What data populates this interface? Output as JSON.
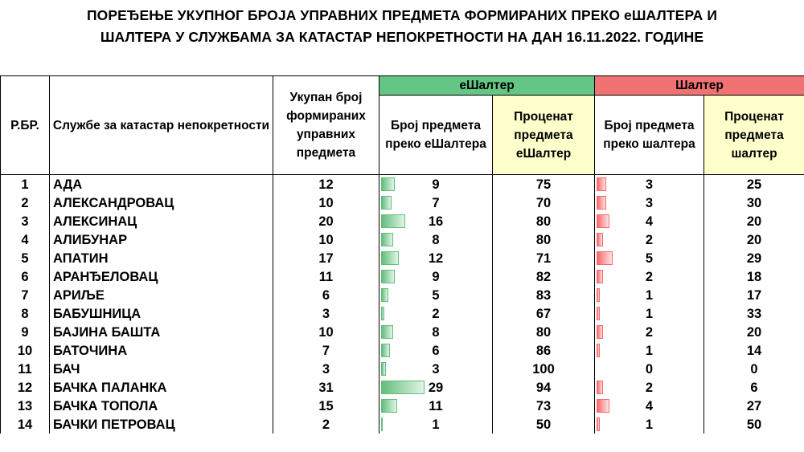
{
  "title": {
    "line1": "ПОРЕЂЕЊЕ УКУПНОГ БРОЈА УПРАВНИХ ПРЕДМЕТА ФОРМИРАНИХ ПРЕКО еШАЛТЕРА И",
    "line2": "ШАЛТЕРА У СЛУЖБАМА ЗА КАТАСТАР НЕПОКРЕТНОСТИ НА ДАН 16.11.2022. ГОДИНЕ"
  },
  "headers": {
    "rbr": "Р.БР.",
    "office": "Службе за катастар непокретности",
    "total": "Укупан број формираних управних предмета",
    "group_e": "еШалтер",
    "group_s": "Шалтер",
    "e_count": "Број предмета преко еШалтера",
    "e_pct": "Проценат предмета еШалтер",
    "s_count": "Број предмета преко шалтера",
    "s_pct": "Проценат предмета шалтер"
  },
  "colors": {
    "group_e_bg": "#64c684",
    "group_s_bg": "#f07272",
    "pct_bg": "#ffffcc",
    "bar_green": "#63be7b",
    "bar_red": "#f8696b"
  },
  "rows": [
    {
      "rbr": "1",
      "office": "АДА",
      "total": "12",
      "e_count": "9",
      "e_pct": "75",
      "s_count": "3",
      "s_pct": "25"
    },
    {
      "rbr": "2",
      "office": "АЛЕКСАНДРОВАЦ",
      "total": "10",
      "e_count": "7",
      "e_pct": "70",
      "s_count": "3",
      "s_pct": "30"
    },
    {
      "rbr": "3",
      "office": "АЛЕКСИНАЦ",
      "total": "20",
      "e_count": "16",
      "e_pct": "80",
      "s_count": "4",
      "s_pct": "20"
    },
    {
      "rbr": "4",
      "office": "АЛИБУНАР",
      "total": "10",
      "e_count": "8",
      "e_pct": "80",
      "s_count": "2",
      "s_pct": "20"
    },
    {
      "rbr": "5",
      "office": "АПАТИН",
      "total": "17",
      "e_count": "12",
      "e_pct": "71",
      "s_count": "5",
      "s_pct": "29"
    },
    {
      "rbr": "6",
      "office": "АРАНЂЕЛОВАЦ",
      "total": "11",
      "e_count": "9",
      "e_pct": "82",
      "s_count": "2",
      "s_pct": "18"
    },
    {
      "rbr": "7",
      "office": "АРИЉЕ",
      "total": "6",
      "e_count": "5",
      "e_pct": "83",
      "s_count": "1",
      "s_pct": "17"
    },
    {
      "rbr": "8",
      "office": "БАБУШНИЦА",
      "total": "3",
      "e_count": "2",
      "e_pct": "67",
      "s_count": "1",
      "s_pct": "33"
    },
    {
      "rbr": "9",
      "office": "БАЈИНА БАШТА",
      "total": "10",
      "e_count": "8",
      "e_pct": "80",
      "s_count": "2",
      "s_pct": "20"
    },
    {
      "rbr": "10",
      "office": "БАТОЧИНА",
      "total": "7",
      "e_count": "6",
      "e_pct": "86",
      "s_count": "1",
      "s_pct": "14"
    },
    {
      "rbr": "11",
      "office": "БАЧ",
      "total": "3",
      "e_count": "3",
      "e_pct": "100",
      "s_count": "0",
      "s_pct": "0"
    },
    {
      "rbr": "12",
      "office": "БАЧКА ПАЛАНКА",
      "total": "31",
      "e_count": "29",
      "e_pct": "94",
      "s_count": "2",
      "s_pct": "6"
    },
    {
      "rbr": "13",
      "office": "БАЧКА ТОПОЛА",
      "total": "15",
      "e_count": "11",
      "e_pct": "73",
      "s_count": "4",
      "s_pct": "27"
    },
    {
      "rbr": "14",
      "office": "БАЧКИ ПЕТРОВАЦ",
      "total": "2",
      "e_count": "1",
      "e_pct": "50",
      "s_count": "1",
      "s_pct": "50"
    }
  ]
}
